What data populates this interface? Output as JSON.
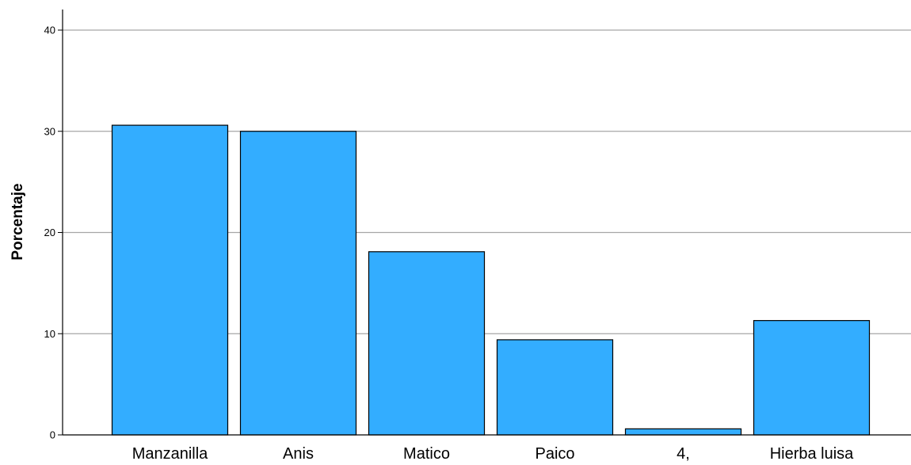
{
  "chart_data": {
    "type": "bar",
    "title": "",
    "xlabel": "",
    "ylabel": "Porcentaje",
    "categories": [
      "Manzanilla",
      "Anis",
      "Matico",
      "Paico",
      "4,",
      "Hierba luisa"
    ],
    "values": [
      30.6,
      30.0,
      18.1,
      9.4,
      0.6,
      11.3
    ],
    "ylim": [
      0,
      42
    ],
    "yticks": [
      "0",
      "10",
      "20",
      "30",
      "40"
    ],
    "grid": true,
    "bar_color": "#33adff",
    "bar_stroke": "#000000",
    "grid_color": "#a6a6a6"
  }
}
